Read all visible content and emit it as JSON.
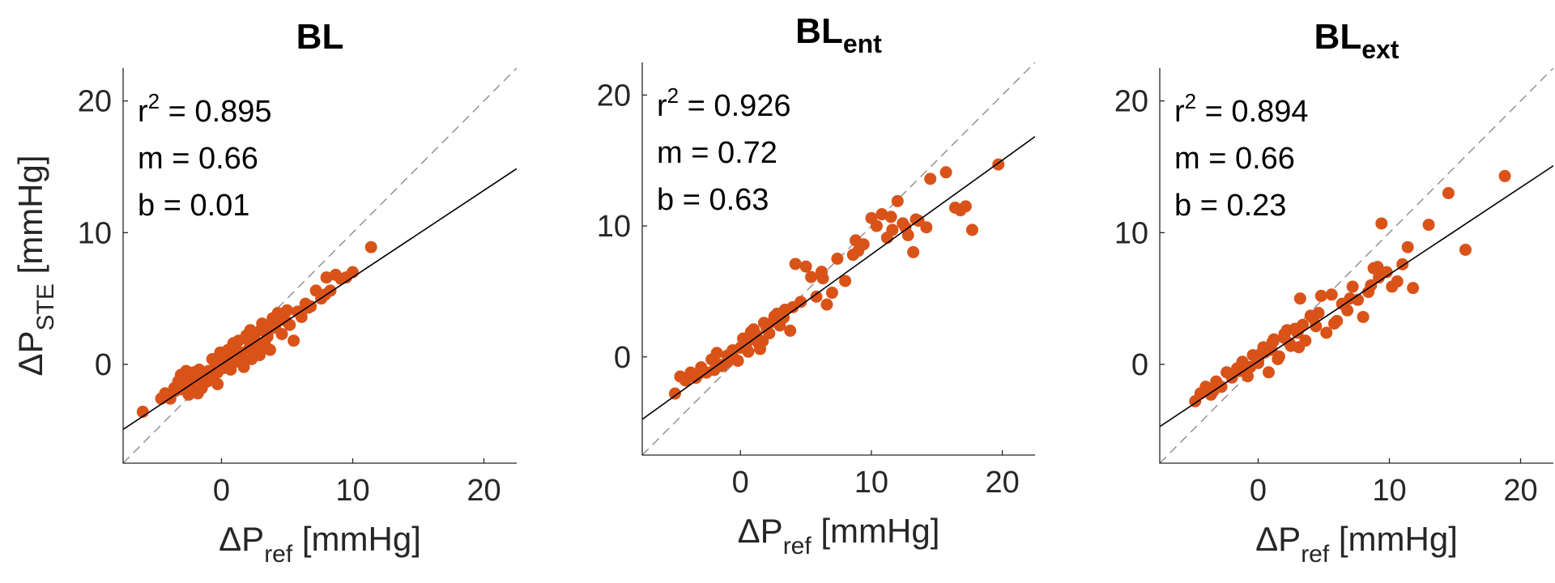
{
  "chart_data": [
    {
      "type": "scatter",
      "title_main": "BL",
      "title_sub": "",
      "xlabel_main": "ΔP",
      "xlabel_sub": "ref",
      "xlabel_unit": " [mmHg]",
      "ylabel_main": "ΔP",
      "ylabel_sub": "STE",
      "ylabel_unit": " [mmHg]",
      "xlim": [
        -7.5,
        22.5
      ],
      "ylim": [
        -7.5,
        22.5
      ],
      "xticks": [
        0,
        10,
        20
      ],
      "yticks": [
        0,
        10,
        20
      ],
      "xtick_labels": [
        "0",
        "10",
        "20"
      ],
      "ytick_labels": [
        "0",
        "10",
        "20"
      ],
      "r2_label": "r",
      "r2_value": " = 0.895",
      "m_label": "m = 0.66",
      "b_label": "b = 0.01",
      "fit": {
        "m": 0.66,
        "b": 0.01
      },
      "point_color": "#d95319",
      "x": [
        -6.0,
        -4.6,
        -4.3,
        -3.9,
        -3.6,
        -3.3,
        -3.1,
        -2.9,
        -2.7,
        -2.5,
        -2.3,
        -2.1,
        -1.9,
        -1.7,
        -1.5,
        -1.3,
        -1.1,
        -0.9,
        -0.7,
        -0.5,
        -0.3,
        -0.1,
        0.1,
        0.3,
        0.5,
        0.7,
        0.9,
        1.1,
        1.3,
        1.5,
        1.7,
        1.9,
        2.1,
        2.3,
        2.5,
        2.7,
        2.9,
        3.1,
        3.3,
        3.5,
        3.7,
        3.9,
        4.1,
        4.3,
        4.6,
        4.9,
        5.2,
        5.5,
        5.8,
        6.1,
        6.4,
        6.8,
        7.2,
        7.6,
        8.0,
        8.3,
        8.7,
        9.1,
        9.5,
        10.0,
        11.4,
        -3.0,
        -2.0,
        -1.0,
        0.0,
        1.0,
        2.0,
        3.0,
        -2.5,
        -1.5,
        0.5,
        1.5,
        2.5,
        3.5,
        0.2,
        -0.6,
        1.2,
        2.8,
        4.4,
        5.0,
        6.6,
        7.9,
        -2.2,
        -0.3,
        1.8,
        3.7,
        2.2,
        0.8,
        -1.8,
        -3.5
      ],
      "y": [
        -3.6,
        -2.6,
        -2.2,
        -2.6,
        -1.8,
        -1.3,
        -0.8,
        -1.6,
        -0.5,
        -1.2,
        -2.0,
        -0.6,
        -1.4,
        -0.4,
        -1.8,
        -0.7,
        -1.3,
        -0.9,
        0.4,
        -0.2,
        -0.6,
        0.9,
        -0.3,
        0.6,
        1.1,
        -0.4,
        1.6,
        0.2,
        1.8,
        0.7,
        -0.2,
        2.2,
        1.2,
        0.4,
        2.0,
        1.4,
        0.7,
        3.1,
        1.6,
        2.4,
        1.1,
        3.5,
        2.8,
        3.9,
        2.3,
        3.3,
        3.0,
        1.8,
        4.0,
        3.6,
        4.6,
        4.4,
        5.6,
        5.0,
        6.6,
        5.6,
        6.8,
        6.5,
        6.6,
        7.0,
        8.9,
        -1.9,
        -1.0,
        -0.5,
        0.5,
        0.3,
        1.9,
        2.6,
        -2.3,
        -0.7,
        0.0,
        0.9,
        1.7,
        2.1,
        0.3,
        -0.9,
        1.0,
        1.1,
        3.4,
        4.1,
        4.3,
        5.3,
        -2.0,
        -1.5,
        0.3,
        2.9,
        2.6,
        1.2,
        -2.2,
        -2.0
      ]
    },
    {
      "type": "scatter",
      "title_main": "BL",
      "title_sub": "ent",
      "xlabel_main": "ΔP",
      "xlabel_sub": "ref",
      "xlabel_unit": " [mmHg]",
      "ylabel_main": "",
      "ylabel_sub": "",
      "ylabel_unit": "",
      "xlim": [
        -7.5,
        22.5
      ],
      "ylim": [
        -7.5,
        22.5
      ],
      "xticks": [
        0,
        10,
        20
      ],
      "yticks": [
        0,
        10,
        20
      ],
      "xtick_labels": [
        "0",
        "10",
        "20"
      ],
      "ytick_labels": [
        "0",
        "10",
        "20"
      ],
      "r2_label": "r",
      "r2_value": " = 0.926",
      "m_label": "m = 0.72",
      "b_label": "b = 0.63",
      "fit": {
        "m": 0.72,
        "b": 0.63
      },
      "point_color": "#d95319",
      "x": [
        -5.0,
        -4.6,
        -4.2,
        -3.8,
        -3.4,
        -3.0,
        -2.6,
        -2.2,
        -1.8,
        -1.4,
        -1.0,
        -0.6,
        -0.2,
        0.2,
        0.6,
        1.0,
        1.4,
        1.8,
        2.2,
        2.6,
        3.0,
        3.4,
        3.8,
        4.2,
        4.6,
        5.0,
        5.4,
        5.8,
        6.2,
        6.6,
        7.0,
        7.4,
        8.0,
        8.6,
        9.0,
        9.4,
        10.0,
        10.4,
        10.8,
        11.2,
        11.6,
        12.0,
        12.4,
        12.8,
        13.2,
        13.6,
        14.2,
        14.5,
        15.7,
        16.4,
        16.8,
        17.2,
        17.7,
        19.7,
        -2.0,
        -1.0,
        0.0,
        1.0,
        2.0,
        3.0,
        0.5,
        1.5,
        2.5,
        -0.5,
        1.2,
        0.8,
        2.8,
        4.0,
        6.3,
        8.8,
        11.5,
        12.6,
        13.4,
        -3.2,
        -1.6,
        0.3,
        1.7,
        3.3
      ],
      "y": [
        -2.8,
        -1.5,
        -1.8,
        -1.2,
        -1.6,
        -0.8,
        -1.2,
        -0.2,
        0.3,
        -0.7,
        0.1,
        0.5,
        -0.3,
        1.4,
        0.4,
        2.1,
        1.0,
        2.6,
        1.8,
        3.1,
        2.4,
        3.6,
        2.0,
        7.1,
        4.2,
        6.9,
        6.1,
        4.6,
        6.5,
        4.0,
        4.9,
        7.5,
        5.8,
        7.8,
        8.1,
        8.6,
        10.6,
        10.0,
        10.9,
        9.1,
        9.7,
        11.9,
        10.2,
        9.3,
        8.0,
        10.4,
        9.9,
        13.6,
        14.1,
        11.4,
        11.2,
        11.5,
        9.7,
        14.7,
        -1.0,
        -0.4,
        0.7,
        1.4,
        2.2,
        2.9,
        1.1,
        0.6,
        2.7,
        -0.1,
        1.7,
        1.9,
        3.3,
        3.8,
        6.0,
        8.9,
        10.7,
        9.9,
        10.5,
        -1.3,
        -0.6,
        0.9,
        1.2,
        3.0
      ]
    },
    {
      "type": "scatter",
      "title_main": "BL",
      "title_sub": "ext",
      "xlabel_main": "ΔP",
      "xlabel_sub": "ref",
      "xlabel_unit": " [mmHg]",
      "ylabel_main": "",
      "ylabel_sub": "",
      "ylabel_unit": "",
      "xlim": [
        -7.5,
        22.5
      ],
      "ylim": [
        -7.5,
        22.5
      ],
      "xticks": [
        0,
        10,
        20
      ],
      "yticks": [
        0,
        10,
        20
      ],
      "xtick_labels": [
        "0",
        "10",
        "20"
      ],
      "ytick_labels": [
        "0",
        "10",
        "20"
      ],
      "r2_label": "r",
      "r2_value": " = 0.894",
      "m_label": "m = 0.66",
      "b_label": "b = 0.23",
      "fit": {
        "m": 0.66,
        "b": 0.23
      },
      "point_color": "#d95319",
      "x": [
        -4.8,
        -4.4,
        -4.0,
        -3.6,
        -3.2,
        -2.8,
        -2.4,
        -2.0,
        -1.6,
        -1.2,
        -0.8,
        -0.4,
        0.0,
        0.4,
        0.8,
        1.2,
        1.6,
        2.0,
        2.4,
        2.8,
        3.2,
        3.6,
        4.0,
        4.4,
        4.8,
        5.2,
        5.6,
        6.0,
        6.4,
        6.8,
        7.2,
        7.6,
        8.0,
        8.4,
        8.8,
        9.2,
        9.4,
        9.8,
        10.2,
        10.6,
        11.0,
        11.4,
        11.8,
        13.0,
        14.5,
        15.8,
        18.8,
        -2.0,
        -1.0,
        0.0,
        1.0,
        2.0,
        3.0,
        0.5,
        1.5,
        2.5,
        -0.6,
        1.1,
        3.4,
        4.6,
        5.8,
        7.0,
        8.6,
        3.1,
        4.2,
        9.1,
        -3.4,
        -1.4,
        0.2,
        2.2
      ],
      "y": [
        -2.8,
        -2.2,
        -1.7,
        -2.3,
        -1.3,
        -1.7,
        -0.6,
        -1.0,
        -0.3,
        0.2,
        -0.9,
        0.7,
        0.1,
        1.3,
        -0.6,
        1.9,
        0.6,
        2.3,
        1.6,
        2.7,
        5.0,
        1.8,
        3.7,
        2.9,
        5.2,
        2.4,
        5.3,
        3.3,
        4.6,
        4.1,
        5.9,
        4.9,
        3.6,
        5.5,
        7.3,
        6.6,
        10.7,
        7.0,
        5.9,
        6.3,
        7.6,
        8.9,
        5.8,
        10.6,
        13.0,
        8.7,
        14.3,
        -0.7,
        -0.1,
        0.3,
        1.1,
        2.0,
        2.4,
        0.9,
        0.4,
        1.4,
        -0.2,
        1.7,
        3.0,
        3.9,
        3.1,
        5.0,
        6.0,
        1.3,
        3.5,
        7.4,
        -2.0,
        -0.5,
        0.8,
        2.6
      ]
    }
  ]
}
